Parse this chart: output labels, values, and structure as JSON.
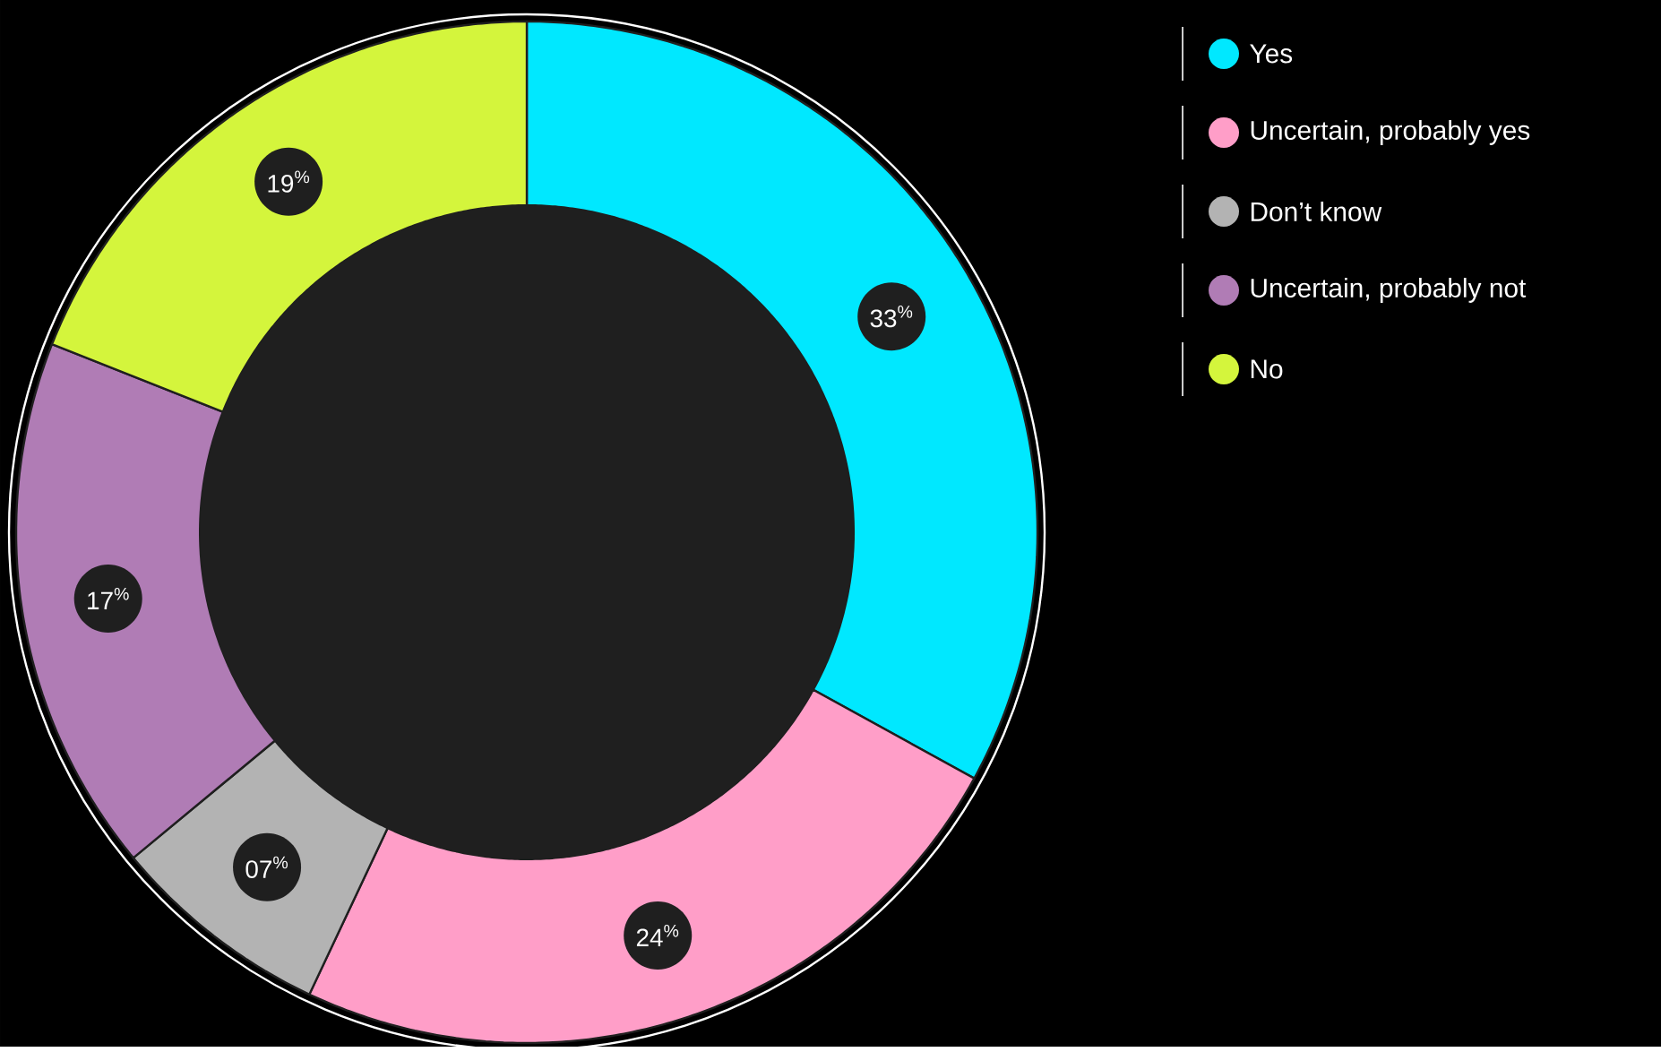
{
  "chart_data": {
    "type": "donut",
    "categories": [
      "Yes",
      "Uncertain, probably yes",
      "Don’t know",
      "Uncertain, probably not",
      "No"
    ],
    "values": [
      33,
      24,
      7,
      17,
      19
    ],
    "colors": [
      "#00e8ff",
      "#ff9ec8",
      "#b3b3b3",
      "#b07cb5",
      "#d4f53c"
    ],
    "value_labels": [
      "33$^{%}$",
      "24$^{%}$",
      "07$^{%}$",
      "17$^{%}$",
      "19$^{%}$"
    ],
    "legend": "top right"
  }
}
